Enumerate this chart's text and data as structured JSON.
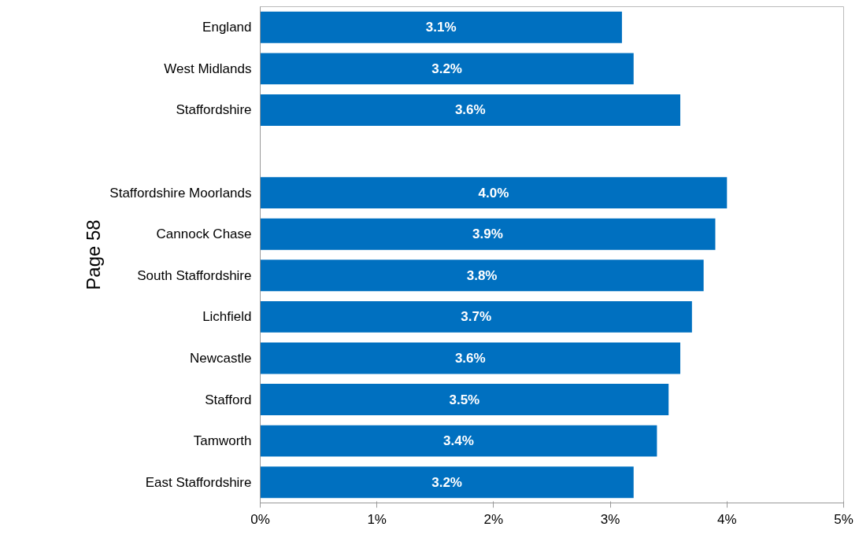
{
  "chart_data": {
    "type": "bar",
    "orientation": "horizontal",
    "categories": [
      "England",
      "West Midlands",
      "Staffordshire",
      null,
      "Staffordshire Moorlands",
      "Cannock Chase",
      "South Staffordshire",
      "Lichfield",
      "Newcastle",
      "Stafford",
      "Tamworth",
      "East Staffordshire"
    ],
    "values": [
      3.1,
      3.2,
      3.6,
      null,
      4.0,
      3.9,
      3.8,
      3.7,
      3.6,
      3.5,
      3.4,
      3.2
    ],
    "value_labels": [
      "3.1%",
      "3.2%",
      "3.6%",
      null,
      "4.0%",
      "3.9%",
      "3.8%",
      "3.7%",
      "3.6%",
      "3.5%",
      "3.4%",
      "3.2%"
    ],
    "color": "#0070c0",
    "xlim": [
      0,
      5
    ],
    "xticks": [
      {
        "value": 0,
        "label": "0%"
      },
      {
        "value": 1,
        "label": "1%"
      },
      {
        "value": 2,
        "label": "2%"
      },
      {
        "value": 3,
        "label": "3%"
      },
      {
        "value": 4,
        "label": "4%"
      },
      {
        "value": 5,
        "label": "5%"
      }
    ],
    "grid": false,
    "annotations": [
      "Page 58"
    ]
  }
}
